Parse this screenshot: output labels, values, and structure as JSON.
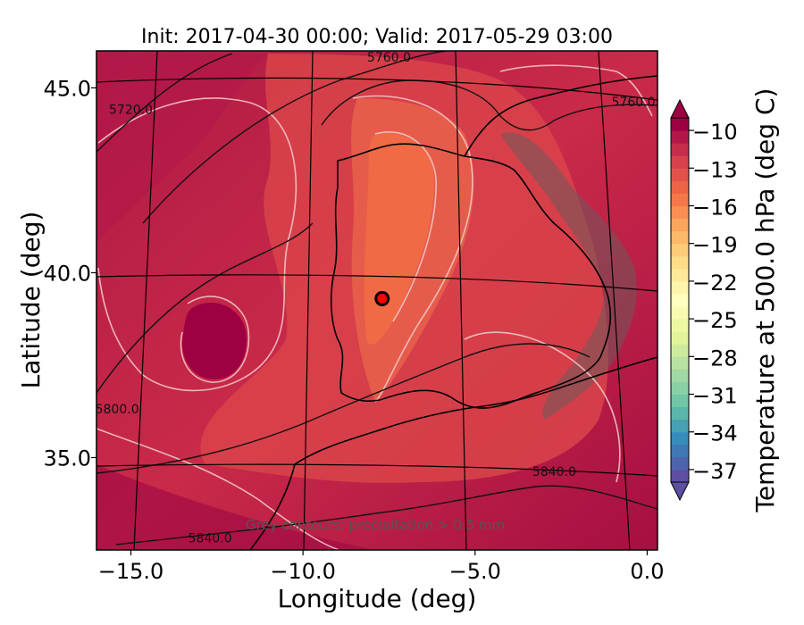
{
  "chart_data": {
    "type": "contour_map",
    "title": "Init: 2017-04-30 00:00; Valid: 2017-05-29 03:00",
    "xlabel": "Longitude (deg)",
    "ylabel": "Latitude (deg)",
    "xlim": [
      -16.0,
      0.3
    ],
    "ylim": [
      32.5,
      46.0
    ],
    "x_ticks": [
      -15.0,
      -10.0,
      -5.0,
      0.0
    ],
    "x_tick_labels": [
      "−15.0",
      "−10.0",
      "−5.0",
      "0.0"
    ],
    "y_ticks": [
      35.0,
      40.0,
      45.0
    ],
    "y_tick_labels": [
      "35.0",
      "40.0",
      "45.0"
    ],
    "colorbar": {
      "label": "Temperature at 500.0 hPa (deg C)",
      "extend": "both",
      "range": [
        -38,
        -9
      ],
      "ticks": [
        -10,
        -13,
        -16,
        -19,
        -22,
        -25,
        -28,
        -31,
        -34,
        -37
      ],
      "tick_labels": [
        "−10",
        "−13",
        "−16",
        "−19",
        "−22",
        "−25",
        "−28",
        "−31",
        "−34",
        "−37"
      ],
      "colormap": "Spectral_r",
      "colors": [
        "#5e4fa2",
        "#3288bd",
        "#66c2a5",
        "#abdda4",
        "#e6f598",
        "#ffffbf",
        "#fee08b",
        "#fdae61",
        "#f46d43",
        "#d53e4f",
        "#9e0142"
      ]
    },
    "contour_labels": [
      {
        "text": "5720.0",
        "lon": -15.0,
        "lat": 44.3
      },
      {
        "text": "5760.0",
        "lon": -7.5,
        "lat": 46.0
      },
      {
        "text": "5760.0",
        "lon": -0.4,
        "lat": 44.5
      },
      {
        "text": "5800.0",
        "lon": -15.4,
        "lat": 36.2
      },
      {
        "text": "5840.0",
        "lon": -2.7,
        "lat": 34.5
      },
      {
        "text": "5840.0",
        "lon": -12.7,
        "lat": 32.7
      }
    ],
    "marker": {
      "lon": -7.7,
      "lat": 39.3
    },
    "annotation": "Grey contours: precipitation > 0.5 mm"
  }
}
